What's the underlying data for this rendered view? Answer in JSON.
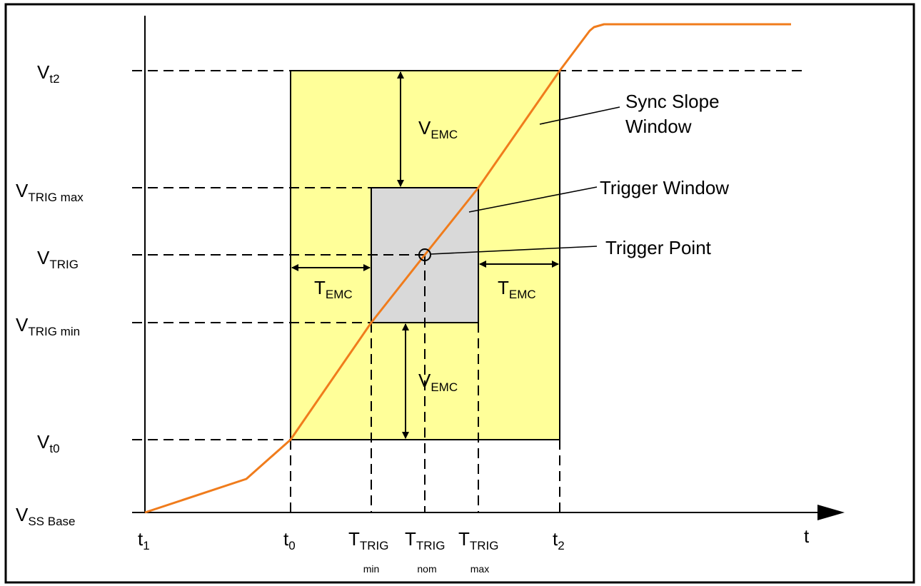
{
  "y_axis_labels": {
    "vt2": {
      "main": "V",
      "sub": "t2"
    },
    "vtrig_max": {
      "main": "V",
      "sub": "TRIG max"
    },
    "vtrig": {
      "main": "V",
      "sub": "TRIG"
    },
    "vtrig_min": {
      "main": "V",
      "sub": "TRIG min"
    },
    "vt0": {
      "main": "V",
      "sub": "t0"
    },
    "vss_base": {
      "main": "V",
      "sub": "SS Base"
    }
  },
  "x_axis_labels": {
    "t1": {
      "main": "t",
      "sub": "1"
    },
    "t0": {
      "main": "t",
      "sub": "0"
    },
    "ttrig_min": {
      "main": "T",
      "sub": "TRIG",
      "below": "min"
    },
    "ttrig_nom": {
      "main": "T",
      "sub": "TRIG",
      "below": "nom"
    },
    "ttrig_max": {
      "main": "T",
      "sub": "TRIG",
      "below": "max"
    },
    "t2": {
      "main": "t",
      "sub": "2"
    },
    "t_axis": "t"
  },
  "region_labels": {
    "vemc_upper": {
      "main": "V",
      "sub": "EMC"
    },
    "vemc_lower": {
      "main": "V",
      "sub": "EMC"
    },
    "temc_left": {
      "main": "T",
      "sub": "EMC"
    },
    "temc_right": {
      "main": "T",
      "sub": "EMC"
    }
  },
  "callouts": {
    "sync_slope_line1": "Sync Slope",
    "sync_slope_line2": "Window",
    "trigger_window": "Trigger Window",
    "trigger_point": "Trigger Point"
  },
  "colors": {
    "sync_window_fill": "#ffff99",
    "trigger_window_fill": "#d9d9d9",
    "signal_curve": "#f07c1c",
    "lines": "#000000"
  }
}
